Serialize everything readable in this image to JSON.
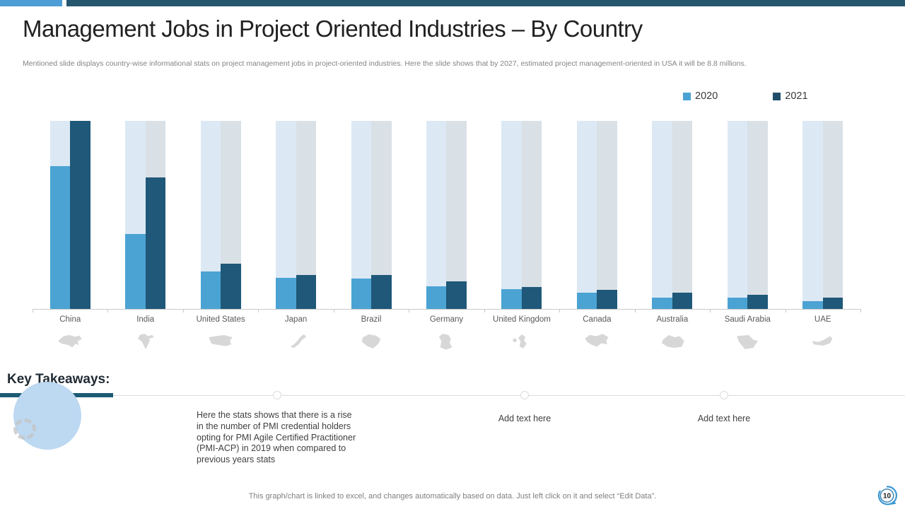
{
  "slide": {
    "title": "Management Jobs in Project Oriented Industries – By Country",
    "subtitle": "Mentioned slide displays country-wise informational stats on project management jobs in project-oriented industries. Here the slide shows that by 2027, estimated project management-oriented in USA it will be 8.8 millions.",
    "footer": "This graph/chart is linked to excel, and changes automatically based on data. Just left click on it and select “Edit Data”.",
    "page_number": "10"
  },
  "colors": {
    "accent_light_blue": "#4d9ed7",
    "accent_dark_slate": "#27566f",
    "bar_2020": "#4ba3d3",
    "bar_2021": "#1f5878",
    "track_2020": "#dce9f5",
    "track_2021": "#d9e0e6",
    "takeaway_bar_teal": "#1d5b75",
    "deco_circle_blue": "#bdd8f1",
    "badge_blue": "#3a97d3"
  },
  "legend": {
    "items": [
      {
        "label": "2020",
        "color": "#4ba3d3"
      },
      {
        "label": "2021",
        "color": "#1f4e69"
      }
    ]
  },
  "chart_data": {
    "type": "bar",
    "title": "Management Jobs in Project Oriented Industries – By Country",
    "xlabel": "",
    "ylabel": "",
    "ylim": [
      0,
      100
    ],
    "values_unit": "relative index (no value axis shown on slide)",
    "grid": false,
    "legend_position": "top-right",
    "background_tracks": true,
    "track_colors": [
      "#dce9f5",
      "#d9e0e6"
    ],
    "categories": [
      "China",
      "India",
      "United States",
      "Japan",
      "Brazil",
      "Germany",
      "United Kingdom",
      "Canada",
      "Australia",
      "Saudi Arabia",
      "UAE"
    ],
    "category_icons": [
      "china-map-icon",
      "india-map-icon",
      "united-states-map-icon",
      "japan-map-icon",
      "brazil-map-icon",
      "germany-map-icon",
      "united-kingdom-map-icon",
      "canada-map-icon",
      "australia-map-icon",
      "saudi-arabia-map-icon",
      "uae-map-icon"
    ],
    "series": [
      {
        "name": "2020",
        "color": "#4ba3d3",
        "values": [
          76,
          40,
          20,
          16.5,
          16,
          12,
          10.5,
          8.5,
          6,
          6,
          4
        ]
      },
      {
        "name": "2021",
        "color": "#1f5878",
        "values": [
          100,
          70,
          24,
          18,
          18,
          14.5,
          11.5,
          10,
          8.5,
          7.5,
          6
        ]
      }
    ]
  },
  "takeaways": {
    "heading": "Key Takeaways",
    "colon": ":",
    "items": [
      {
        "text": "Here the stats shows that there is a rise in the number of PMI credential holders opting for PMI Agile Certified Practitioner (PMI-ACP) in 2019 when compared to previous years stats",
        "placeholder": false
      },
      {
        "text": "Add text here",
        "placeholder": true
      },
      {
        "text": "Add text here",
        "placeholder": true
      }
    ]
  }
}
